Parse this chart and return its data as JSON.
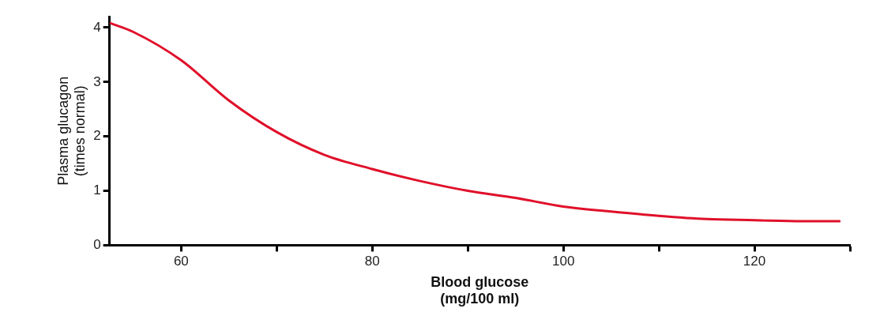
{
  "chart_data": {
    "type": "line",
    "xlabel": "Blood glucose\n(mg/100 ml)",
    "ylabel": "Plasma glucagon\n(times normal)",
    "xlim": [
      52.5,
      130
    ],
    "ylim": [
      0,
      4.2
    ],
    "xticks": [
      60,
      {
        "value": 70,
        "label": null
      },
      80,
      {
        "value": 90,
        "label": null
      },
      100,
      {
        "value": 110,
        "label": null
      },
      120,
      {
        "value": 130,
        "label": null
      }
    ],
    "yticks": [
      0,
      1,
      2,
      3,
      4
    ],
    "grid": false,
    "legend": false,
    "marker": "none",
    "line_style": "solid",
    "series": [
      {
        "color": "#e0102a",
        "x": [
          52.6,
          55,
          60,
          65,
          70,
          75,
          80,
          85,
          90,
          95,
          100,
          105,
          110,
          115,
          120,
          125,
          128.9
        ],
        "values": [
          4.08,
          3.92,
          3.4,
          2.66,
          2.08,
          1.66,
          1.4,
          1.18,
          1.0,
          0.87,
          0.71,
          0.62,
          0.54,
          0.48,
          0.46,
          0.44,
          0.44
        ]
      }
    ]
  }
}
